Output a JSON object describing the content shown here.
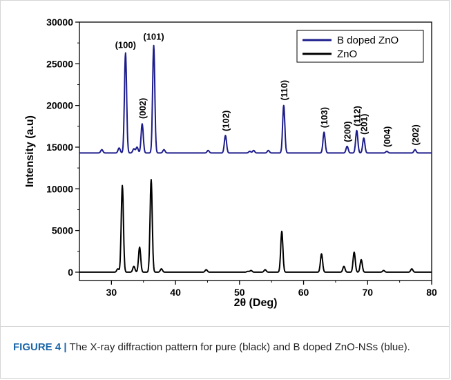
{
  "chart_data": {
    "type": "line",
    "xlabel": "2θ (Deg)",
    "ylabel": "Intensity (a.u)",
    "xlim": [
      25,
      80
    ],
    "ylim": [
      -1000,
      30000
    ],
    "xticks": [
      "30",
      "40",
      "50",
      "60",
      "70",
      "80"
    ],
    "yticks": [
      "0",
      "5000",
      "10000",
      "15000",
      "20000",
      "25000",
      "30000"
    ],
    "legend_position": "top-right",
    "series": [
      {
        "name": "B doped ZnO",
        "color": "#1c1c8c",
        "baseline": 14300,
        "peaks": [
          {
            "x": 28.5,
            "y": 14700
          },
          {
            "x": 31.2,
            "y": 14900
          },
          {
            "x": 32.2,
            "y": 26300
          },
          {
            "x": 33.5,
            "y": 14800
          },
          {
            "x": 34.0,
            "y": 15000
          },
          {
            "x": 34.8,
            "y": 17800
          },
          {
            "x": 36.6,
            "y": 27200
          },
          {
            "x": 38.2,
            "y": 14700
          },
          {
            "x": 45.1,
            "y": 14600
          },
          {
            "x": 47.8,
            "y": 16400
          },
          {
            "x": 51.6,
            "y": 14500
          },
          {
            "x": 52.2,
            "y": 14600
          },
          {
            "x": 54.5,
            "y": 14600
          },
          {
            "x": 56.9,
            "y": 20000
          },
          {
            "x": 63.2,
            "y": 16800
          },
          {
            "x": 66.8,
            "y": 15100
          },
          {
            "x": 68.3,
            "y": 17000
          },
          {
            "x": 69.4,
            "y": 16100
          },
          {
            "x": 73.0,
            "y": 14500
          },
          {
            "x": 77.4,
            "y": 14700
          }
        ]
      },
      {
        "name": "ZnO",
        "color": "#000000",
        "baseline": 0,
        "peaks": [
          {
            "x": 31.0,
            "y": 400
          },
          {
            "x": 31.7,
            "y": 10400
          },
          {
            "x": 33.5,
            "y": 700
          },
          {
            "x": 34.4,
            "y": 3000
          },
          {
            "x": 36.2,
            "y": 11100
          },
          {
            "x": 37.8,
            "y": 400
          },
          {
            "x": 44.8,
            "y": 300
          },
          {
            "x": 51.3,
            "y": 100
          },
          {
            "x": 51.8,
            "y": 200
          },
          {
            "x": 54.0,
            "y": 300
          },
          {
            "x": 56.6,
            "y": 4900
          },
          {
            "x": 62.8,
            "y": 2200
          },
          {
            "x": 66.3,
            "y": 700
          },
          {
            "x": 67.9,
            "y": 2400
          },
          {
            "x": 69.0,
            "y": 1500
          },
          {
            "x": 72.5,
            "y": 200
          },
          {
            "x": 76.9,
            "y": 400
          }
        ]
      }
    ],
    "annotations": [
      {
        "text": "(100)",
        "x": 32.2,
        "y": 26900,
        "rotated": false
      },
      {
        "text": "(101)",
        "x": 36.6,
        "y": 27900,
        "rotated": false
      },
      {
        "text": "(002)",
        "x": 34.8,
        "y": 18400,
        "rotated": true
      },
      {
        "text": "(102)",
        "x": 47.8,
        "y": 16900,
        "rotated": true
      },
      {
        "text": "(110)",
        "x": 56.9,
        "y": 20600,
        "rotated": true
      },
      {
        "text": "(103)",
        "x": 63.2,
        "y": 17300,
        "rotated": true
      },
      {
        "text": "(200)",
        "x": 66.8,
        "y": 15600,
        "rotated": true
      },
      {
        "text": "(112)",
        "x": 68.3,
        "y": 17500,
        "rotated": true
      },
      {
        "text": "(201)",
        "x": 69.4,
        "y": 16500,
        "rotated": true
      },
      {
        "text": "(004)",
        "x": 73.0,
        "y": 15000,
        "rotated": true
      },
      {
        "text": "(202)",
        "x": 77.4,
        "y": 15200,
        "rotated": true
      }
    ]
  },
  "caption": {
    "label": "FIGURE 4",
    "separator": "|",
    "text": "The X-ray diffraction pattern for pure (black) and B doped ZnO-NSs (blue)."
  }
}
